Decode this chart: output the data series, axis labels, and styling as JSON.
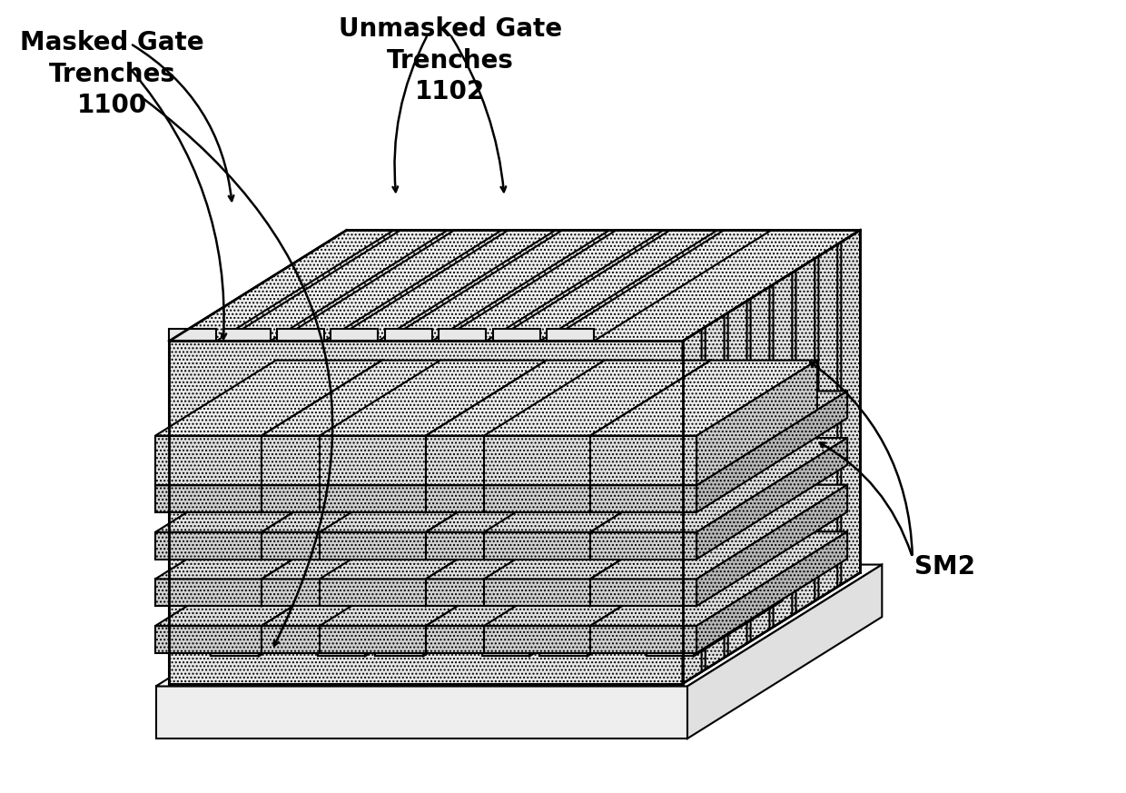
{
  "bg_color": "#ffffff",
  "line_color": "#000000",
  "lw_main": 1.5,
  "lw_thin": 0.8,
  "colors": {
    "body_front": "#e8e8e8",
    "body_top": "#f0f0f0",
    "body_right": "#d8d8d8",
    "nanosheet_front": "#d0d0d0",
    "nanosheet_top": "#e0e0e0",
    "nanosheet_right": "#b8b8b8",
    "gate_front": "#e0e0e0",
    "gate_top": "#eeeeee",
    "gate_right": "#cccccc",
    "pillar_front": "#cccccc",
    "pillar_top": "#dddddd",
    "trench_wall": "#f5f5f5",
    "substrate_front": "#eeeeee",
    "substrate_top": "#f8f8f8",
    "substrate_right": "#e0e0e0",
    "fin_face": "#e4e4e4",
    "fin_top": "#f0f0f0"
  },
  "labels": {
    "masked_gate": "Masked Gate\nTrenches\n1100",
    "unmasked_gate": "Unmasked Gate\nTrenches\n1102",
    "sm2": "SM2"
  },
  "label_fontsize": 20
}
